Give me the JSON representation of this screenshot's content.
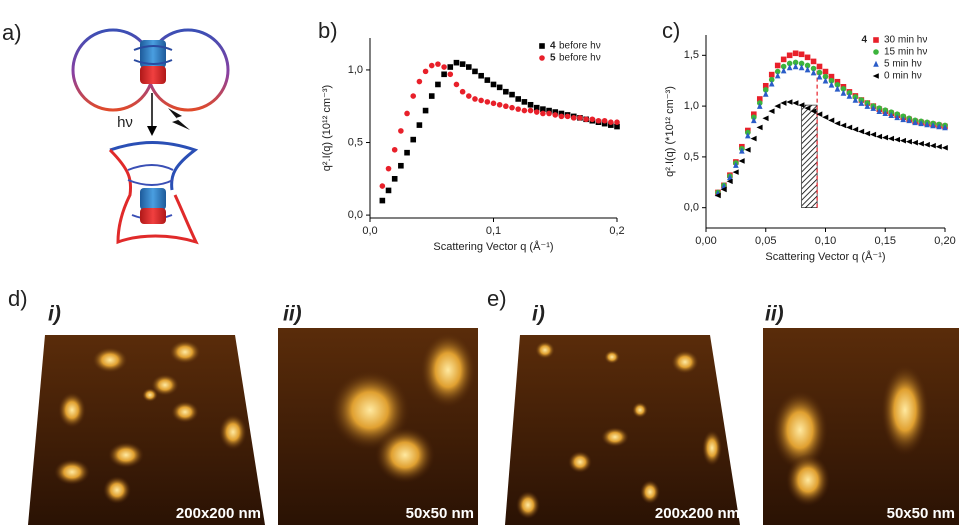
{
  "panels": {
    "a": {
      "label": "a)",
      "hv": "hν"
    },
    "d": {
      "label": "d)",
      "i": {
        "label": "i)",
        "scale": "200x200 nm"
      },
      "ii": {
        "label": "ii)",
        "scale": "50x50 nm"
      }
    },
    "e": {
      "label": "e)",
      "i": {
        "label": "i)",
        "scale": "200x200 nm"
      },
      "ii": {
        "label": "ii)",
        "scale": "50x50 nm"
      }
    }
  },
  "chart_data": [
    {
      "type": "scatter",
      "label": "b)",
      "x_label": "Scattering Vector q (Å⁻¹)",
      "y_label": "q².I(q) (10¹² cm⁻³)",
      "x": [
        0.01,
        0.015,
        0.02,
        0.025,
        0.03,
        0.035,
        0.04,
        0.045,
        0.05,
        0.055,
        0.06,
        0.065,
        0.07,
        0.075,
        0.08,
        0.085,
        0.09,
        0.095,
        0.1,
        0.105,
        0.11,
        0.115,
        0.12,
        0.125,
        0.13,
        0.135,
        0.14,
        0.145,
        0.15,
        0.155,
        0.16,
        0.165,
        0.17,
        0.175,
        0.18,
        0.185,
        0.19,
        0.195,
        0.2
      ],
      "series": [
        {
          "label": "4",
          "name": "before hν",
          "color": "#000000",
          "marker": "square",
          "values": [
            0.1,
            0.17,
            0.25,
            0.34,
            0.43,
            0.52,
            0.62,
            0.72,
            0.82,
            0.9,
            0.97,
            1.02,
            1.05,
            1.04,
            1.02,
            0.99,
            0.96,
            0.93,
            0.9,
            0.88,
            0.85,
            0.83,
            0.8,
            0.78,
            0.76,
            0.74,
            0.73,
            0.72,
            0.71,
            0.7,
            0.69,
            0.68,
            0.67,
            0.66,
            0.65,
            0.64,
            0.63,
            0.62,
            0.61
          ]
        },
        {
          "label": "5",
          "name": "before hν",
          "color": "#e8202a",
          "marker": "circle",
          "values": [
            0.2,
            0.32,
            0.45,
            0.58,
            0.7,
            0.82,
            0.92,
            0.99,
            1.03,
            1.04,
            1.02,
            0.97,
            0.9,
            0.85,
            0.82,
            0.8,
            0.79,
            0.78,
            0.77,
            0.76,
            0.75,
            0.74,
            0.73,
            0.72,
            0.72,
            0.71,
            0.7,
            0.7,
            0.69,
            0.68,
            0.68,
            0.67,
            0.67,
            0.66,
            0.66,
            0.65,
            0.65,
            0.64,
            0.64
          ]
        }
      ],
      "xlim": [
        0,
        0.2
      ],
      "ylim": [
        -0.02,
        1.22
      ],
      "xticks": [
        {
          "value": 0,
          "label": "0,0"
        },
        {
          "value": 0.1,
          "label": "0,1"
        },
        {
          "value": 0.2,
          "label": "0,2"
        }
      ],
      "yticks": [
        {
          "value": 0,
          "label": "0,0"
        },
        {
          "value": 0.5,
          "label": "0,5"
        },
        {
          "value": 1.0,
          "label": "1,0"
        }
      ]
    },
    {
      "type": "scatter",
      "label": "c)",
      "legend_title": "4",
      "x_label": "Scattering Vector q (Å⁻¹)",
      "y_label": "q².I(q) (*10¹² cm⁻³)",
      "x": [
        0.01,
        0.015,
        0.02,
        0.025,
        0.03,
        0.035,
        0.04,
        0.045,
        0.05,
        0.055,
        0.06,
        0.065,
        0.07,
        0.075,
        0.08,
        0.085,
        0.09,
        0.095,
        0.1,
        0.105,
        0.11,
        0.115,
        0.12,
        0.125,
        0.13,
        0.135,
        0.14,
        0.145,
        0.15,
        0.155,
        0.16,
        0.165,
        0.17,
        0.175,
        0.18,
        0.185,
        0.19,
        0.195,
        0.2
      ],
      "series": [
        {
          "name": "30 min hν",
          "color": "#e8202a",
          "marker": "square",
          "values": [
            0.15,
            0.22,
            0.32,
            0.45,
            0.6,
            0.76,
            0.92,
            1.07,
            1.2,
            1.31,
            1.4,
            1.46,
            1.5,
            1.52,
            1.51,
            1.48,
            1.44,
            1.39,
            1.34,
            1.29,
            1.24,
            1.19,
            1.14,
            1.1,
            1.06,
            1.03,
            1.0,
            0.97,
            0.95,
            0.93,
            0.91,
            0.89,
            0.87,
            0.85,
            0.84,
            0.83,
            0.82,
            0.81,
            0.8
          ]
        },
        {
          "name": "15 min hν",
          "color": "#3cb43c",
          "marker": "circle",
          "values": [
            0.15,
            0.22,
            0.31,
            0.44,
            0.58,
            0.74,
            0.89,
            1.03,
            1.16,
            1.26,
            1.34,
            1.39,
            1.42,
            1.43,
            1.42,
            1.4,
            1.37,
            1.33,
            1.29,
            1.25,
            1.21,
            1.17,
            1.13,
            1.09,
            1.06,
            1.03,
            1.0,
            0.98,
            0.96,
            0.94,
            0.92,
            0.9,
            0.88,
            0.86,
            0.85,
            0.84,
            0.83,
            0.82,
            0.81
          ]
        },
        {
          "name": "5 min hν",
          "color": "#2a5cc8",
          "marker": "triangle-up",
          "values": [
            0.14,
            0.21,
            0.3,
            0.42,
            0.56,
            0.71,
            0.86,
            1.0,
            1.12,
            1.22,
            1.3,
            1.35,
            1.38,
            1.39,
            1.38,
            1.36,
            1.33,
            1.29,
            1.25,
            1.21,
            1.17,
            1.13,
            1.1,
            1.06,
            1.03,
            1.0,
            0.98,
            0.95,
            0.93,
            0.91,
            0.89,
            0.87,
            0.86,
            0.84,
            0.83,
            0.82,
            0.81,
            0.8,
            0.79
          ]
        },
        {
          "name": "0 min hν",
          "color": "#000000",
          "marker": "triangle-left",
          "values": [
            0.12,
            0.18,
            0.26,
            0.35,
            0.46,
            0.57,
            0.68,
            0.79,
            0.88,
            0.95,
            1.0,
            1.03,
            1.04,
            1.03,
            1.01,
            0.98,
            0.95,
            0.92,
            0.89,
            0.86,
            0.83,
            0.81,
            0.79,
            0.77,
            0.75,
            0.73,
            0.72,
            0.7,
            0.69,
            0.68,
            0.67,
            0.66,
            0.65,
            0.64,
            0.63,
            0.62,
            0.61,
            0.6,
            0.59
          ]
        }
      ],
      "highlight_band": [
        0.08,
        0.093
      ],
      "xlim": [
        0,
        0.2
      ],
      "ylim": [
        -0.2,
        1.7
      ],
      "xticks": [
        {
          "value": 0,
          "label": "0,00"
        },
        {
          "value": 0.05,
          "label": "0,05"
        },
        {
          "value": 0.1,
          "label": "0,10"
        },
        {
          "value": 0.15,
          "label": "0,15"
        },
        {
          "value": 0.2,
          "label": "0,20"
        }
      ],
      "yticks": [
        {
          "value": 0,
          "label": "0,0"
        },
        {
          "value": 0.5,
          "label": "0,5"
        },
        {
          "value": 1.0,
          "label": "1,0"
        },
        {
          "value": 1.5,
          "label": "1,5"
        }
      ]
    }
  ]
}
